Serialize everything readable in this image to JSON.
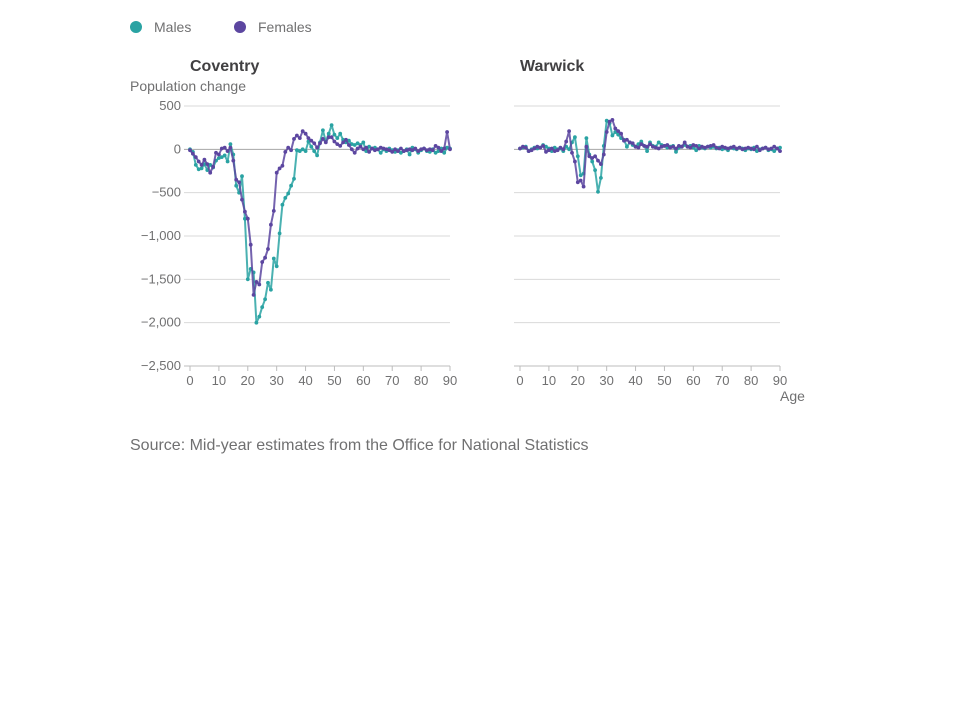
{
  "source": "Source: Mid-year estimates from the Office for National Statistics",
  "colors": {
    "males": "#2aa3a3",
    "females": "#5c46a0"
  },
  "chart_data": {
    "type": "line",
    "y_axis_label": "Population change",
    "x_axis_label": "Age",
    "legend": [
      "Males",
      "Females"
    ],
    "legend_placement": "top-left",
    "grid": true,
    "xlim": [
      0,
      90
    ],
    "ylim": [
      -2500,
      500
    ],
    "x_ticks": [
      0,
      10,
      20,
      30,
      40,
      50,
      60,
      70,
      80,
      90
    ],
    "y_ticks": [
      500,
      0,
      -500,
      -1000,
      -1500,
      -2000,
      -2500
    ],
    "y_tick_labels": [
      "500",
      "0",
      "−500",
      "−1,000",
      "−1,500",
      "−2,000",
      "−2,500"
    ],
    "panels": [
      {
        "title": "Coventry",
        "series": [
          {
            "name": "Males",
            "x": [
              0,
              1,
              2,
              3,
              4,
              5,
              6,
              7,
              8,
              9,
              10,
              11,
              12,
              13,
              14,
              15,
              16,
              17,
              18,
              19,
              20,
              21,
              22,
              23,
              24,
              25,
              26,
              27,
              28,
              29,
              30,
              31,
              32,
              33,
              34,
              35,
              36,
              37,
              38,
              39,
              40,
              41,
              42,
              43,
              44,
              45,
              46,
              47,
              48,
              49,
              50,
              51,
              52,
              53,
              54,
              55,
              56,
              57,
              58,
              59,
              60,
              61,
              62,
              63,
              64,
              65,
              66,
              67,
              68,
              69,
              70,
              71,
              72,
              73,
              74,
              75,
              76,
              77,
              78,
              79,
              80,
              81,
              82,
              83,
              84,
              85,
              86,
              87,
              88,
              89,
              90
            ],
            "y": [
              0,
              -30,
              -180,
              -230,
              -220,
              -170,
              -240,
              -180,
              -210,
              -130,
              -100,
              -90,
              -70,
              -140,
              60,
              -60,
              -420,
              -500,
              -310,
              -800,
              -1500,
              -1380,
              -1420,
              -2000,
              -1930,
              -1820,
              -1730,
              -1540,
              -1620,
              -1260,
              -1350,
              -970,
              -640,
              -560,
              -510,
              -420,
              -340,
              -10,
              -20,
              0,
              -20,
              90,
              30,
              -20,
              -70,
              80,
              220,
              90,
              180,
              280,
              170,
              130,
              180,
              110,
              80,
              100,
              60,
              50,
              70,
              50,
              80,
              -20,
              30,
              10,
              20,
              0,
              -40,
              0,
              -20,
              10,
              -10,
              -30,
              -10,
              -40,
              -20,
              0,
              -60,
              20,
              0,
              -40,
              -10,
              10,
              -20,
              -30,
              0,
              -40,
              -20,
              10,
              -40,
              20,
              10
            ]
          },
          {
            "name": "Females",
            "x": [
              0,
              1,
              2,
              3,
              4,
              5,
              6,
              7,
              8,
              9,
              10,
              11,
              12,
              13,
              14,
              15,
              16,
              17,
              18,
              19,
              20,
              21,
              22,
              23,
              24,
              25,
              26,
              27,
              28,
              29,
              30,
              31,
              32,
              33,
              34,
              35,
              36,
              37,
              38,
              39,
              40,
              41,
              42,
              43,
              44,
              45,
              46,
              47,
              48,
              49,
              50,
              51,
              52,
              53,
              54,
              55,
              56,
              57,
              58,
              59,
              60,
              61,
              62,
              63,
              64,
              65,
              66,
              67,
              68,
              69,
              70,
              71,
              72,
              73,
              74,
              75,
              76,
              77,
              78,
              79,
              80,
              81,
              82,
              83,
              84,
              85,
              86,
              87,
              88,
              89,
              90
            ],
            "y": [
              -10,
              -50,
              -90,
              -140,
              -180,
              -120,
              -170,
              -270,
              -200,
              -40,
              -60,
              10,
              20,
              -20,
              20,
              -130,
              -350,
              -380,
              -580,
              -720,
              -800,
              -1100,
              -1680,
              -1530,
              -1560,
              -1300,
              -1250,
              -1150,
              -870,
              -710,
              -270,
              -220,
              -190,
              -30,
              20,
              -10,
              120,
              160,
              130,
              210,
              180,
              130,
              100,
              70,
              20,
              70,
              120,
              80,
              140,
              140,
              90,
              60,
              40,
              80,
              110,
              50,
              0,
              -40,
              10,
              30,
              0,
              20,
              -30,
              10,
              -10,
              0,
              20,
              10,
              0,
              -10,
              -30,
              0,
              -20,
              10,
              -20,
              -10,
              0,
              -10,
              10,
              -20,
              0,
              10,
              -10,
              0,
              -10,
              40,
              20,
              -20,
              10,
              200,
              0
            ]
          }
        ]
      },
      {
        "title": "Warwick",
        "series": [
          {
            "name": "Males",
            "x": [
              0,
              1,
              2,
              3,
              4,
              5,
              6,
              7,
              8,
              9,
              10,
              11,
              12,
              13,
              14,
              15,
              16,
              17,
              18,
              19,
              20,
              21,
              22,
              23,
              24,
              25,
              26,
              27,
              28,
              29,
              30,
              31,
              32,
              33,
              34,
              35,
              36,
              37,
              38,
              39,
              40,
              41,
              42,
              43,
              44,
              45,
              46,
              47,
              48,
              49,
              50,
              51,
              52,
              53,
              54,
              55,
              56,
              57,
              58,
              59,
              60,
              61,
              62,
              63,
              64,
              65,
              66,
              67,
              68,
              69,
              70,
              71,
              72,
              73,
              74,
              75,
              76,
              77,
              78,
              79,
              80,
              81,
              82,
              83,
              84,
              85,
              86,
              87,
              88,
              89,
              90
            ],
            "y": [
              10,
              20,
              30,
              -20,
              0,
              20,
              10,
              20,
              50,
              30,
              10,
              -20,
              20,
              0,
              10,
              -20,
              30,
              0,
              80,
              140,
              -80,
              -300,
              -280,
              130,
              -60,
              -140,
              -240,
              -490,
              -330,
              40,
              330,
              300,
              160,
              200,
              170,
              130,
              110,
              30,
              80,
              50,
              30,
              60,
              90,
              40,
              -20,
              80,
              40,
              30,
              80,
              50,
              40,
              20,
              30,
              40,
              -30,
              20,
              30,
              50,
              30,
              40,
              20,
              -10,
              40,
              20,
              10,
              30,
              20,
              30,
              10,
              20,
              0,
              10,
              -10,
              20,
              10,
              0,
              20,
              10,
              -10,
              10,
              0,
              20,
              -20,
              0,
              10,
              20,
              -10,
              0,
              -20,
              10,
              20
            ]
          },
          {
            "name": "Females",
            "x": [
              0,
              1,
              2,
              3,
              4,
              5,
              6,
              7,
              8,
              9,
              10,
              11,
              12,
              13,
              14,
              15,
              16,
              17,
              18,
              19,
              20,
              21,
              22,
              23,
              24,
              25,
              26,
              27,
              28,
              29,
              30,
              31,
              32,
              33,
              34,
              35,
              36,
              37,
              38,
              39,
              40,
              41,
              42,
              43,
              44,
              45,
              46,
              47,
              48,
              49,
              50,
              51,
              52,
              53,
              54,
              55,
              56,
              57,
              58,
              59,
              60,
              61,
              62,
              63,
              64,
              65,
              66,
              67,
              68,
              69,
              70,
              71,
              72,
              73,
              74,
              75,
              76,
              77,
              78,
              79,
              80,
              81,
              82,
              83,
              84,
              85,
              86,
              87,
              88,
              89,
              90
            ],
            "y": [
              10,
              30,
              20,
              -20,
              -10,
              10,
              30,
              20,
              40,
              -30,
              -10,
              10,
              -20,
              -10,
              20,
              0,
              90,
              210,
              -40,
              -140,
              -380,
              -360,
              -430,
              30,
              -80,
              -100,
              -80,
              -130,
              -170,
              -60,
              200,
              320,
              340,
              240,
              210,
              180,
              100,
              110,
              80,
              70,
              30,
              20,
              60,
              40,
              30,
              60,
              30,
              20,
              10,
              30,
              40,
              50,
              20,
              30,
              10,
              40,
              30,
              80,
              30,
              20,
              50,
              40,
              10,
              30,
              20,
              30,
              40,
              50,
              20,
              10,
              30,
              20,
              10,
              20,
              30,
              10,
              20,
              0,
              10,
              20,
              10,
              0,
              30,
              -10,
              10,
              20,
              0,
              10,
              30,
              10,
              -20
            ]
          }
        ]
      }
    ]
  }
}
